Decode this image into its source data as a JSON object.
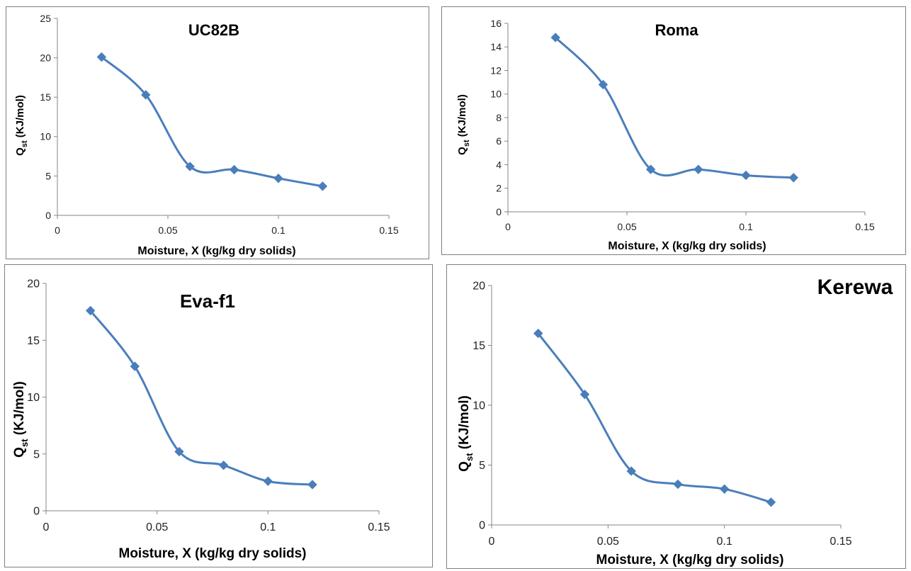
{
  "chart_data": [
    {
      "type": "line",
      "title": "UC82B",
      "xlabel": "Moisture, X (kg/kg dry solids)",
      "ylabel_main": "Q",
      "ylabel_sub": "st",
      "ylabel_rest": " (KJ/mol)",
      "xlim": [
        0,
        0.15
      ],
      "ylim": [
        0,
        25
      ],
      "x_ticks": [
        "0",
        "0.05",
        "0.1",
        "0.15"
      ],
      "y_ticks": [
        "0",
        "5",
        "10",
        "15",
        "20",
        "25"
      ],
      "grid": false,
      "color": "#4a7ebb",
      "x": [
        0.02,
        0.04,
        0.06,
        0.08,
        0.1,
        0.12
      ],
      "y": [
        20.1,
        15.3,
        6.2,
        5.8,
        4.7,
        3.7
      ]
    },
    {
      "type": "line",
      "title": "Roma",
      "xlabel": "Moisture, X (kg/kg dry solids)",
      "ylabel_main": "Q",
      "ylabel_sub": "st",
      "ylabel_rest": " (KJ/mol)",
      "xlim": [
        0,
        0.15
      ],
      "ylim": [
        0,
        16
      ],
      "x_ticks": [
        "0",
        "0.05",
        "0.1",
        "0.15"
      ],
      "y_ticks": [
        "0",
        "2",
        "4",
        "6",
        "8",
        "10",
        "12",
        "14",
        "16"
      ],
      "grid": false,
      "color": "#4a7ebb",
      "x": [
        0.02,
        0.04,
        0.06,
        0.08,
        0.1,
        0.12
      ],
      "y": [
        14.8,
        10.8,
        3.6,
        3.6,
        3.1,
        2.9
      ]
    },
    {
      "type": "line",
      "title": "Eva-f1",
      "xlabel": "Moisture, X (kg/kg dry solids)",
      "ylabel_main": "Q",
      "ylabel_sub": "st",
      "ylabel_rest": " (KJ/mol)",
      "xlim": [
        0,
        0.15
      ],
      "ylim": [
        0,
        20
      ],
      "x_ticks": [
        "0",
        "0.05",
        "0.1",
        "0.15"
      ],
      "y_ticks": [
        "0",
        "5",
        "10",
        "15",
        "20"
      ],
      "grid": false,
      "color": "#4a7ebb",
      "x": [
        0.02,
        0.04,
        0.06,
        0.08,
        0.1,
        0.12
      ],
      "y": [
        17.6,
        12.7,
        5.2,
        4.0,
        2.6,
        2.3
      ]
    },
    {
      "type": "line",
      "title": "Kerewa",
      "xlabel": "Moisture, X (kg/kg dry solids)",
      "ylabel_main": "Q",
      "ylabel_sub": "st",
      "ylabel_rest": " (KJ/mol)",
      "xlim": [
        0,
        0.15
      ],
      "ylim": [
        0,
        20
      ],
      "x_ticks": [
        "0",
        "0.05",
        "0.1",
        "0.15"
      ],
      "y_ticks": [
        "0",
        "5",
        "10",
        "15",
        "20"
      ],
      "grid": false,
      "color": "#4a7ebb",
      "x": [
        0.02,
        0.04,
        0.06,
        0.08,
        0.1,
        0.12
      ],
      "y": [
        16.0,
        10.9,
        4.5,
        3.4,
        3.0,
        1.9
      ]
    }
  ]
}
